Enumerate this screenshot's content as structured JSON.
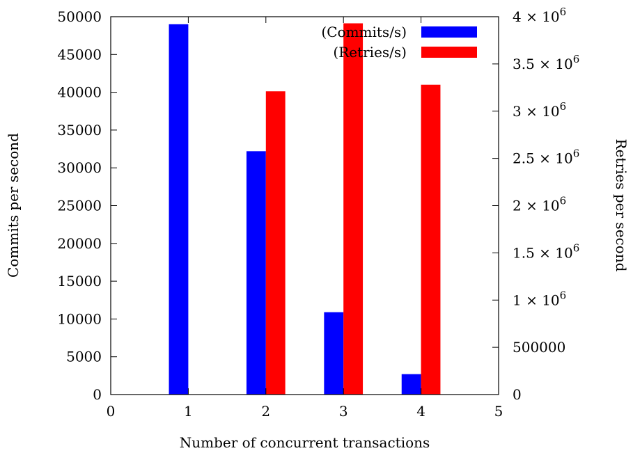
{
  "chart_data": {
    "type": "bar",
    "x": [
      1,
      2,
      3,
      4
    ],
    "xlim": [
      0,
      5
    ],
    "xticks": [
      "0",
      "1",
      "2",
      "3",
      "4",
      "5"
    ],
    "xlabel": "Number of concurrent transactions",
    "ylabel": "Commits per second",
    "ylim": [
      0,
      50000
    ],
    "yticks": [
      "0",
      "5000",
      "10000",
      "15000",
      "20000",
      "25000",
      "30000",
      "35000",
      "40000",
      "45000",
      "50000"
    ],
    "y2label": "Retries per second",
    "y2lim": [
      0,
      4000000
    ],
    "y2ticks": [
      {
        "value": 0,
        "mantissa": "0",
        "exp": ""
      },
      {
        "value": 500000,
        "mantissa": "500000",
        "exp": ""
      },
      {
        "value": 1000000,
        "mantissa": "1 × 10",
        "exp": "6"
      },
      {
        "value": 1500000,
        "mantissa": "1.5 × 10",
        "exp": "6"
      },
      {
        "value": 2000000,
        "mantissa": "2 × 10",
        "exp": "6"
      },
      {
        "value": 2500000,
        "mantissa": "2.5 × 10",
        "exp": "6"
      },
      {
        "value": 3000000,
        "mantissa": "3 × 10",
        "exp": "6"
      },
      {
        "value": 3500000,
        "mantissa": "3.5 × 10",
        "exp": "6"
      },
      {
        "value": 4000000,
        "mantissa": "4 × 10",
        "exp": "6"
      }
    ],
    "series": [
      {
        "name": "(Commits/s)",
        "axis": "left",
        "color": "#0000ff",
        "values": [
          49000,
          32200,
          10900,
          2700
        ]
      },
      {
        "name": "(Retries/s)",
        "axis": "right",
        "color": "#ff0000",
        "values": [
          0,
          3210000,
          3930000,
          3280000
        ]
      }
    ],
    "legend_position": "top-right",
    "grid": false
  }
}
